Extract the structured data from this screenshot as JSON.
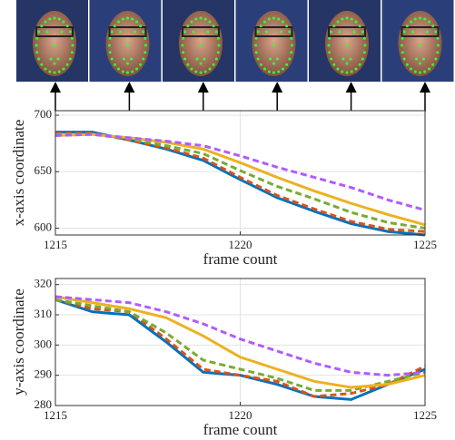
{
  "chart_data": [
    {
      "type": "line",
      "ylabel": "x-axis coordinate",
      "xlabel": "frame count",
      "x": [
        1215,
        1216,
        1217,
        1218,
        1219,
        1220,
        1221,
        1222,
        1223,
        1224,
        1225
      ],
      "xlim": [
        1215,
        1225
      ],
      "xticks": [
        1215,
        1220,
        1225
      ],
      "ylim": [
        594,
        704
      ],
      "yticks": [
        600,
        650,
        700
      ],
      "grid": true,
      "series": [
        {
          "color": "#0072bd",
          "dashed": false,
          "values": [
            685,
            685,
            678,
            670,
            660,
            643,
            627,
            615,
            604,
            597,
            594
          ]
        },
        {
          "color": "#d95319",
          "dashed": true,
          "values": [
            684,
            684,
            678,
            671,
            662,
            645,
            629,
            617,
            606,
            599,
            597
          ]
        },
        {
          "color": "#77ac30",
          "dashed": true,
          "values": [
            683,
            683,
            679,
            673,
            666,
            651,
            637,
            626,
            614,
            605,
            600
          ]
        },
        {
          "color": "#edb120",
          "dashed": false,
          "values": [
            682,
            683,
            680,
            676,
            670,
            658,
            645,
            633,
            622,
            612,
            603
          ]
        },
        {
          "color": "#b05cff",
          "dashed": true,
          "values": [
            682,
            683,
            680,
            677,
            673,
            664,
            654,
            645,
            636,
            625,
            616
          ]
        }
      ]
    },
    {
      "type": "line",
      "ylabel": "y-axis coordinate",
      "xlabel": "frame count",
      "x": [
        1215,
        1216,
        1217,
        1218,
        1219,
        1220,
        1221,
        1222,
        1223,
        1224,
        1225
      ],
      "xlim": [
        1215,
        1225
      ],
      "xticks": [
        1215,
        1220,
        1225
      ],
      "ylim": [
        280,
        322
      ],
      "yticks": [
        280,
        290,
        300,
        310,
        320
      ],
      "grid": true,
      "series": [
        {
          "color": "#0072bd",
          "dashed": false,
          "values": [
            315,
            311,
            310,
            301,
            291,
            290,
            287,
            283,
            282,
            287,
            292
          ]
        },
        {
          "color": "#d95319",
          "dashed": true,
          "values": [
            315,
            312,
            311,
            302,
            292,
            290,
            288,
            283,
            284,
            287,
            293
          ]
        },
        {
          "color": "#77ac30",
          "dashed": true,
          "values": [
            315,
            313,
            311,
            304,
            295,
            292,
            289,
            285,
            285,
            288,
            291
          ]
        },
        {
          "color": "#edb120",
          "dashed": false,
          "values": [
            316,
            314,
            312,
            309,
            303,
            296,
            292,
            288,
            286,
            287,
            290
          ]
        },
        {
          "color": "#b05cff",
          "dashed": true,
          "values": [
            316,
            315,
            314,
            311,
            307,
            302,
            298,
            294,
            291,
            290,
            291
          ]
        }
      ]
    }
  ]
}
